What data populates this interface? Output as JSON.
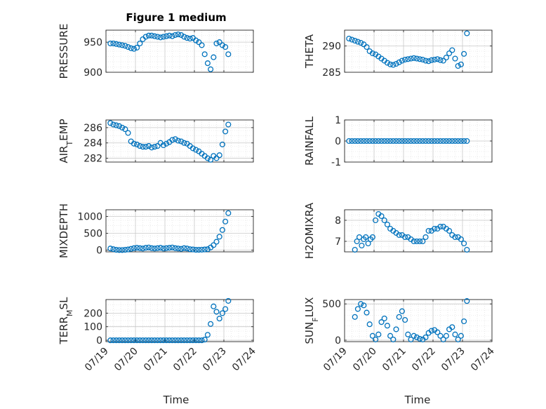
{
  "figure": {
    "title": "Figure 1 medium",
    "xlabel": "Time",
    "xticks": [
      "07/19",
      "07/20",
      "07/21",
      "07/22",
      "07/23",
      "07/24"
    ],
    "xlim": [
      0,
      5
    ],
    "colors": {
      "marker": "#0072BD",
      "grid": "#dcdcdc",
      "axis": "#262626",
      "background": "#ffffff"
    }
  },
  "chart_data": [
    {
      "type": "scatter",
      "ylabel": "PRESSURE",
      "ylim": [
        900,
        970
      ],
      "yticks": [
        900,
        950
      ],
      "grid": true,
      "x": [
        0.15,
        0.25,
        0.35,
        0.45,
        0.55,
        0.65,
        0.75,
        0.85,
        0.95,
        1.05,
        1.15,
        1.25,
        1.35,
        1.45,
        1.55,
        1.65,
        1.75,
        1.85,
        1.95,
        2.05,
        2.15,
        2.25,
        2.35,
        2.45,
        2.55,
        2.65,
        2.75,
        2.85,
        2.95,
        3.05,
        3.15,
        3.25,
        3.35,
        3.45,
        3.55,
        3.65,
        3.75,
        3.85,
        3.95,
        4.05,
        4.15
      ],
      "y": [
        948,
        948,
        947,
        946,
        945,
        944,
        942,
        940,
        939,
        941,
        948,
        955,
        959,
        961,
        961,
        960,
        959,
        958,
        959,
        960,
        961,
        960,
        962,
        963,
        962,
        959,
        957,
        956,
        957,
        953,
        950,
        945,
        930,
        915,
        905,
        925,
        948,
        950,
        945,
        942,
        930
      ]
    },
    {
      "type": "scatter",
      "ylabel": "THETA",
      "ylim": [
        285,
        293
      ],
      "yticks": [
        285,
        290
      ],
      "grid": true,
      "x": [
        0.15,
        0.25,
        0.35,
        0.45,
        0.55,
        0.65,
        0.75,
        0.85,
        0.95,
        1.05,
        1.15,
        1.25,
        1.35,
        1.45,
        1.55,
        1.65,
        1.75,
        1.85,
        1.95,
        2.05,
        2.15,
        2.25,
        2.35,
        2.45,
        2.55,
        2.65,
        2.75,
        2.85,
        2.95,
        3.05,
        3.15,
        3.25,
        3.35,
        3.45,
        3.55,
        3.65,
        3.75,
        3.85,
        3.95,
        4.05,
        4.15
      ],
      "y": [
        291.4,
        291.2,
        291.0,
        290.8,
        290.6,
        290.3,
        289.8,
        289.0,
        288.6,
        288.4,
        288.0,
        287.6,
        287.2,
        286.8,
        286.5,
        286.4,
        286.6,
        286.9,
        287.2,
        287.4,
        287.5,
        287.6,
        287.7,
        287.6,
        287.5,
        287.4,
        287.2,
        287.1,
        287.3,
        287.4,
        287.5,
        287.3,
        287.2,
        287.8,
        288.6,
        289.2,
        287.6,
        286.2,
        286.5,
        288.5,
        292.4
      ]
    },
    {
      "type": "scatter",
      "ylabel": "AIR_TEMP",
      "ylim": [
        281.5,
        287
      ],
      "yticks": [
        282,
        284,
        286
      ],
      "grid": true,
      "x": [
        0.15,
        0.25,
        0.35,
        0.45,
        0.55,
        0.65,
        0.75,
        0.85,
        0.95,
        1.05,
        1.15,
        1.25,
        1.35,
        1.45,
        1.55,
        1.65,
        1.75,
        1.85,
        1.95,
        2.05,
        2.15,
        2.25,
        2.35,
        2.45,
        2.55,
        2.65,
        2.75,
        2.85,
        2.95,
        3.05,
        3.15,
        3.25,
        3.35,
        3.45,
        3.55,
        3.65,
        3.75,
        3.85,
        3.95,
        4.05,
        4.15
      ],
      "y": [
        286.6,
        286.4,
        286.3,
        286.2,
        286.0,
        285.8,
        285.3,
        284.2,
        283.9,
        283.8,
        283.6,
        283.5,
        283.5,
        283.6,
        283.4,
        283.5,
        283.6,
        284.0,
        283.7,
        283.9,
        284.1,
        284.4,
        284.5,
        284.3,
        284.2,
        284.0,
        283.9,
        283.6,
        283.3,
        283.1,
        282.9,
        282.6,
        282.3,
        282.0,
        281.8,
        282.3,
        282.0,
        282.4,
        283.8,
        285.5,
        286.4
      ]
    },
    {
      "type": "scatter",
      "ylabel": "RAINFALL",
      "ylim": [
        -1,
        1
      ],
      "yticks": [
        -1,
        0,
        1
      ],
      "grid": true,
      "x": [
        0.15,
        0.25,
        0.35,
        0.45,
        0.55,
        0.65,
        0.75,
        0.85,
        0.95,
        1.05,
        1.15,
        1.25,
        1.35,
        1.45,
        1.55,
        1.65,
        1.75,
        1.85,
        1.95,
        2.05,
        2.15,
        2.25,
        2.35,
        2.45,
        2.55,
        2.65,
        2.75,
        2.85,
        2.95,
        3.05,
        3.15,
        3.25,
        3.35,
        3.45,
        3.55,
        3.65,
        3.75,
        3.85,
        3.95,
        4.05,
        4.15
      ],
      "y": [
        0,
        0,
        0,
        0,
        0,
        0,
        0,
        0,
        0,
        0,
        0,
        0,
        0,
        0,
        0,
        0,
        0,
        0,
        0,
        0,
        0,
        0,
        0,
        0,
        0,
        0,
        0,
        0,
        0,
        0,
        0,
        0,
        0,
        0,
        0,
        0,
        0,
        0,
        0,
        0,
        0
      ]
    },
    {
      "type": "scatter",
      "ylabel": "MIXDEPTH",
      "ylim": [
        -50,
        1200
      ],
      "yticks": [
        0,
        500,
        1000
      ],
      "grid": true,
      "x": [
        0.15,
        0.25,
        0.35,
        0.45,
        0.55,
        0.65,
        0.75,
        0.85,
        0.95,
        1.05,
        1.15,
        1.25,
        1.35,
        1.45,
        1.55,
        1.65,
        1.75,
        1.85,
        1.95,
        2.05,
        2.15,
        2.25,
        2.35,
        2.45,
        2.55,
        2.65,
        2.75,
        2.85,
        2.95,
        3.05,
        3.15,
        3.25,
        3.35,
        3.45,
        3.55,
        3.65,
        3.75,
        3.85,
        3.95,
        4.05,
        4.15
      ],
      "y": [
        50,
        30,
        10,
        5,
        5,
        10,
        20,
        40,
        60,
        70,
        60,
        50,
        70,
        80,
        60,
        50,
        60,
        70,
        50,
        60,
        70,
        80,
        60,
        50,
        40,
        60,
        50,
        30,
        20,
        10,
        10,
        15,
        20,
        30,
        80,
        150,
        250,
        400,
        600,
        850,
        1100
      ]
    },
    {
      "type": "scatter",
      "ylabel": "H2OMIXRA",
      "ylim": [
        6.5,
        8.5
      ],
      "yticks": [
        7,
        8
      ],
      "grid": true,
      "x": [
        0.35,
        0.42,
        0.5,
        0.58,
        0.65,
        0.72,
        0.8,
        0.88,
        0.95,
        1.05,
        1.15,
        1.25,
        1.35,
        1.45,
        1.55,
        1.65,
        1.75,
        1.85,
        1.95,
        2.05,
        2.15,
        2.25,
        2.35,
        2.45,
        2.55,
        2.65,
        2.75,
        2.85,
        2.95,
        3.05,
        3.15,
        3.25,
        3.35,
        3.45,
        3.55,
        3.65,
        3.75,
        3.85,
        3.95,
        4.05,
        4.15
      ],
      "y": [
        6.6,
        7.0,
        7.2,
        6.8,
        7.1,
        7.2,
        6.9,
        7.1,
        7.2,
        8.0,
        8.3,
        8.2,
        8.0,
        7.8,
        7.6,
        7.5,
        7.4,
        7.3,
        7.3,
        7.2,
        7.2,
        7.1,
        7.0,
        7.0,
        7.0,
        7.0,
        7.2,
        7.5,
        7.5,
        7.6,
        7.6,
        7.7,
        7.7,
        7.6,
        7.5,
        7.3,
        7.2,
        7.2,
        7.1,
        6.9,
        6.6
      ]
    },
    {
      "type": "scatter",
      "ylabel": "TERR_MSL",
      "ylim": [
        -10,
        300
      ],
      "yticks": [
        0,
        100,
        200
      ],
      "grid": true,
      "x": [
        0.15,
        0.25,
        0.35,
        0.45,
        0.55,
        0.65,
        0.75,
        0.85,
        0.95,
        1.05,
        1.15,
        1.25,
        1.35,
        1.45,
        1.55,
        1.65,
        1.75,
        1.85,
        1.95,
        2.05,
        2.15,
        2.25,
        2.35,
        2.45,
        2.55,
        2.65,
        2.75,
        2.85,
        2.95,
        3.05,
        3.15,
        3.25,
        3.35,
        3.45,
        3.55,
        3.65,
        3.75,
        3.85,
        3.95,
        4.05,
        4.15
      ],
      "y": [
        0,
        0,
        0,
        0,
        0,
        0,
        0,
        0,
        0,
        0,
        0,
        0,
        0,
        0,
        0,
        0,
        0,
        0,
        0,
        0,
        0,
        0,
        0,
        0,
        0,
        0,
        0,
        0,
        0,
        0,
        0,
        0,
        5,
        40,
        120,
        250,
        210,
        160,
        200,
        230,
        290
      ]
    },
    {
      "type": "scatter",
      "ylabel": "SUN_FLUX",
      "ylim": [
        -20,
        560
      ],
      "yticks": [
        0,
        500
      ],
      "grid": true,
      "x": [
        0.35,
        0.45,
        0.55,
        0.65,
        0.75,
        0.85,
        0.95,
        1.05,
        1.15,
        1.25,
        1.35,
        1.45,
        1.55,
        1.65,
        1.75,
        1.85,
        1.95,
        2.05,
        2.15,
        2.25,
        2.35,
        2.45,
        2.55,
        2.65,
        2.75,
        2.85,
        2.95,
        3.05,
        3.15,
        3.25,
        3.35,
        3.45,
        3.55,
        3.65,
        3.75,
        3.85,
        3.95,
        4.05,
        4.15
      ],
      "y": [
        320,
        430,
        500,
        480,
        380,
        220,
        60,
        10,
        80,
        250,
        300,
        200,
        60,
        10,
        150,
        320,
        400,
        280,
        80,
        10,
        60,
        40,
        20,
        10,
        40,
        100,
        130,
        140,
        110,
        60,
        10,
        60,
        150,
        180,
        80,
        10,
        60,
        260,
        540
      ]
    }
  ]
}
